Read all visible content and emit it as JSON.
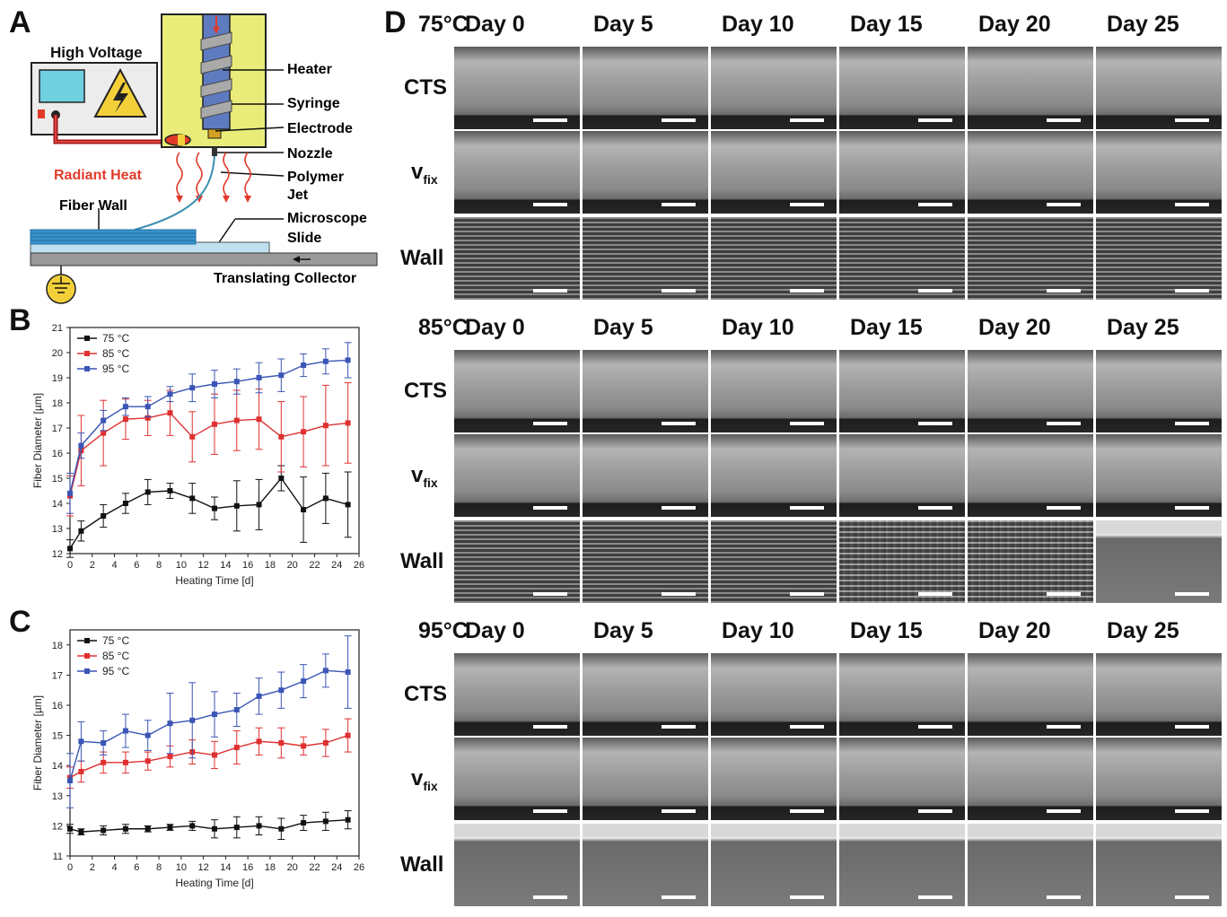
{
  "panels": {
    "a": "A",
    "b": "B",
    "c": "C",
    "d": "D"
  },
  "schematic": {
    "high_voltage": "High Voltage",
    "heater": "Heater",
    "syringe": "Syringe",
    "electrode": "Electrode",
    "nozzle": "Nozzle",
    "polymer_jet_1": "Polymer",
    "polymer_jet_2": "Jet",
    "radiant_heat": "Radiant Heat",
    "fiber_wall": "Fiber Wall",
    "microscope_1": "Microscope",
    "microscope_2": "Slide",
    "collector": "Translating Collector",
    "colors": {
      "housing": "#e9ec78",
      "syringe": "#5f7bc0",
      "jet": "#3a8fb0",
      "heat": "#e23a2a",
      "wall": "#3a92c8",
      "slide": "#bfe0ef",
      "monitor": "#6fd0e0",
      "ground": "#f3d03a"
    }
  },
  "chart_data": [
    {
      "type": "line",
      "xlabel": "Heating Time [d]",
      "ylabel": "Fiber Diameter [µm]",
      "xlim": [
        0,
        26
      ],
      "ylim": [
        12,
        21
      ],
      "xticks": [
        0,
        2,
        4,
        6,
        8,
        10,
        12,
        14,
        16,
        18,
        20,
        22,
        24,
        26
      ],
      "yticks": [
        12,
        13,
        14,
        15,
        16,
        17,
        18,
        19,
        20,
        21
      ],
      "grid": false,
      "legend": "top-left",
      "x": [
        0,
        1,
        3,
        5,
        7,
        9,
        11,
        13,
        15,
        17,
        19,
        21,
        23,
        25
      ],
      "series": [
        {
          "name": "75 °C",
          "color": "#111111",
          "marker": "square",
          "values": [
            12.2,
            12.9,
            13.5,
            14.0,
            14.45,
            14.5,
            14.2,
            13.8,
            13.9,
            13.95,
            15.0,
            13.75,
            14.2,
            13.95
          ],
          "err": [
            0.35,
            0.4,
            0.45,
            0.4,
            0.5,
            0.3,
            0.6,
            0.45,
            1.0,
            1.0,
            0.5,
            1.3,
            1.0,
            1.3
          ]
        },
        {
          "name": "85 °C",
          "color": "#e03030",
          "marker": "square",
          "values": [
            14.3,
            16.1,
            16.8,
            17.35,
            17.4,
            17.6,
            16.65,
            17.15,
            17.3,
            17.35,
            16.65,
            16.85,
            17.1,
            17.2
          ],
          "err": [
            0.8,
            1.4,
            1.3,
            0.8,
            0.7,
            0.9,
            1.0,
            1.2,
            1.2,
            1.2,
            1.4,
            1.4,
            1.6,
            1.6
          ]
        },
        {
          "name": "95 °C",
          "color": "#3a55b5",
          "marker": "square",
          "values": [
            14.4,
            16.3,
            17.3,
            17.85,
            17.85,
            18.35,
            18.6,
            18.75,
            18.85,
            19.0,
            19.1,
            19.5,
            19.65,
            19.7
          ],
          "err": [
            0.8,
            0.5,
            0.4,
            0.35,
            0.4,
            0.3,
            0.55,
            0.55,
            0.5,
            0.6,
            0.65,
            0.45,
            0.5,
            0.7
          ]
        }
      ]
    },
    {
      "type": "line",
      "xlabel": "Heating Time [d]",
      "ylabel": "Fiber Diameter [µm]",
      "xlim": [
        0,
        26
      ],
      "ylim": [
        11,
        18.5
      ],
      "xticks": [
        0,
        2,
        4,
        6,
        8,
        10,
        12,
        14,
        16,
        18,
        20,
        22,
        24,
        26
      ],
      "yticks": [
        11,
        12,
        13,
        14,
        15,
        16,
        17,
        18
      ],
      "grid": false,
      "legend": "top-left",
      "x": [
        0,
        1,
        3,
        5,
        7,
        9,
        11,
        13,
        15,
        17,
        19,
        21,
        23,
        25
      ],
      "series": [
        {
          "name": "75 °C",
          "color": "#111111",
          "marker": "square",
          "values": [
            11.9,
            11.8,
            11.85,
            11.9,
            11.9,
            11.95,
            12.0,
            11.9,
            11.95,
            12.0,
            11.9,
            12.1,
            12.15,
            12.2
          ],
          "err": [
            0.15,
            0.1,
            0.15,
            0.15,
            0.1,
            0.1,
            0.15,
            0.3,
            0.35,
            0.3,
            0.35,
            0.25,
            0.3,
            0.3
          ]
        },
        {
          "name": "85 °C",
          "color": "#e03030",
          "marker": "square",
          "values": [
            13.6,
            13.8,
            14.1,
            14.1,
            14.15,
            14.3,
            14.45,
            14.35,
            14.6,
            14.8,
            14.75,
            14.65,
            14.75,
            15.0
          ],
          "err": [
            0.35,
            0.35,
            0.35,
            0.35,
            0.3,
            0.35,
            0.4,
            0.45,
            0.55,
            0.45,
            0.5,
            0.3,
            0.45,
            0.55
          ]
        },
        {
          "name": "95 °C",
          "color": "#3a55b5",
          "marker": "square",
          "values": [
            13.5,
            14.8,
            14.75,
            15.15,
            15.0,
            15.4,
            15.5,
            15.7,
            15.85,
            16.3,
            16.5,
            16.8,
            17.15,
            17.1
          ],
          "err": [
            0.9,
            0.65,
            0.4,
            0.55,
            0.5,
            1.0,
            1.25,
            0.75,
            0.55,
            0.6,
            0.6,
            0.55,
            0.55,
            1.2
          ]
        }
      ]
    }
  ],
  "sem": {
    "days": [
      "Day 0",
      "Day 5",
      "Day 10",
      "Day 15",
      "Day 20",
      "Day 25"
    ],
    "row_cts": "CTS",
    "row_vfix_main": "v",
    "row_vfix_sub": "fix",
    "row_wall": "Wall",
    "blocks": [
      {
        "temp": "75°C"
      },
      {
        "temp": "85°C"
      },
      {
        "temp": "95°C"
      }
    ]
  }
}
